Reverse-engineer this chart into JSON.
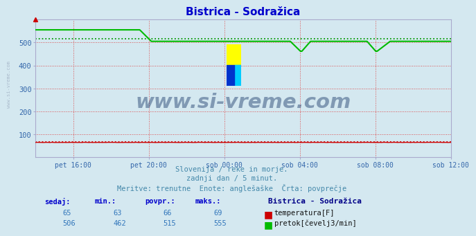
{
  "title": "Bistrica - Sodražica",
  "title_color": "#0000cc",
  "bg_color": "#d4e8f0",
  "plot_bg_color": "#d4e8f0",
  "grid_color": "#dd3333",
  "y_label_color": "#3366aa",
  "x_label_color": "#3366aa",
  "ylim": [
    0,
    600
  ],
  "yticks": [
    100,
    200,
    300,
    400,
    500
  ],
  "xlabel_ticks": [
    "pet 16:00",
    "pet 20:00",
    "sob 00:00",
    "sob 04:00",
    "sob 08:00",
    "sob 12:00"
  ],
  "tick_hours": [
    2,
    6,
    10,
    14,
    18,
    22
  ],
  "total_hours": 22,
  "n_points": 288,
  "temp_value": 65,
  "temp_min": 63,
  "temp_avg": 66,
  "temp_max": 69,
  "flow_value": 506,
  "flow_min": 462,
  "flow_avg": 515,
  "flow_max": 555,
  "temp_color": "#cc0000",
  "flow_color": "#00bb00",
  "avg_color_temp": "#cc0000",
  "avg_color_flow": "#009900",
  "watermark": "www.si-vreme.com",
  "watermark_color": "#1a3a6a",
  "watermark_alpha": 0.45,
  "sidebar_text": "www.si-vreme.com",
  "sidebar_color": "#aabbcc",
  "sub_text1": "Slovenija / reke in morje.",
  "sub_text2": "zadnji dan / 5 minut.",
  "sub_text3": "Meritve: trenutne  Enote: anglešaške  Črta: povprečje",
  "sub_text_color": "#4488aa",
  "legend_title": "Bistrica - Sodražica",
  "legend_title_color": "#000088",
  "table_header_color": "#0000cc",
  "table_value_color": "#3377bb",
  "logo_yellow": "#ffff00",
  "logo_cyan": "#00ccff",
  "logo_blue": "#0033cc"
}
